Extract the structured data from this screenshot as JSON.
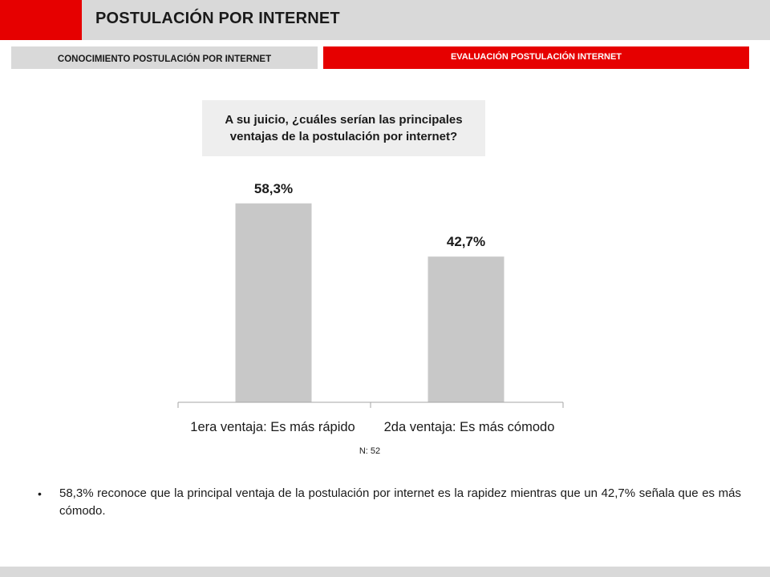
{
  "header": {
    "title": "POSTULACIÓN POR INTERNET"
  },
  "tabs": {
    "left": "CONOCIMIENTO POSTULACIÓN POR INTERNET",
    "right": "EVALUACIÓN POSTULACIÓN INTERNET"
  },
  "colors": {
    "accent": "#e60000",
    "panel": "#d9d9d9",
    "bar": "#c8c8c8"
  },
  "question": "A su juicio, ¿cuáles serían las principales ventajas de la postulación por internet?",
  "chart_data": {
    "type": "bar",
    "categories": [
      "1era ventaja: Es más rápido",
      "2da ventaja: Es más cómodo"
    ],
    "values": [
      58.3,
      42.7
    ],
    "data_labels": [
      "58,3%",
      "42,7%"
    ],
    "title": "",
    "xlabel": "",
    "ylabel": "",
    "ylim": [
      0,
      62
    ],
    "grid": false,
    "legend": "none"
  },
  "note": "N: 52",
  "bullet": "58,3% reconoce que la principal ventaja de la postulación por internet es la rapidez mientras que un 42,7% señala que es más cómodo."
}
